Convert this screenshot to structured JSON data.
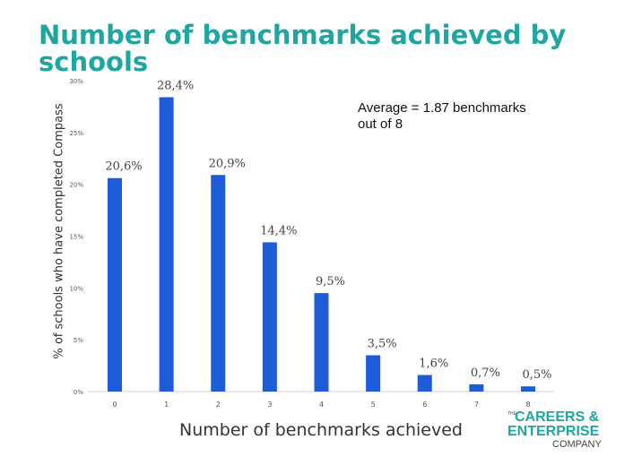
{
  "chart_data": {
    "type": "bar",
    "title": "Number of benchmarks achieved by schools",
    "xlabel": "Number of benchmarks achieved",
    "ylabel": "% of schools who have completed Compass",
    "categories": [
      "0",
      "1",
      "2",
      "3",
      "4",
      "5",
      "6",
      "7",
      "8"
    ],
    "values": [
      20.6,
      28.4,
      20.9,
      14.4,
      9.5,
      3.5,
      1.6,
      0.7,
      0.5
    ],
    "data_labels": [
      "20,6%",
      "28,4%",
      "20,9%",
      "14,4%",
      "9,5%",
      "3,5%",
      "1,6%",
      "0,7%",
      "0,5%"
    ],
    "yticks": [
      0,
      5,
      10,
      15,
      20,
      25,
      30
    ],
    "ytick_labels": [
      "0%",
      "5%",
      "10%",
      "15%",
      "20%",
      "25%",
      "30%"
    ],
    "ylim": [
      0,
      30
    ],
    "grid": false,
    "legend": "none",
    "bar_color": "#1e5bd6",
    "annotation": "Average = 1.87 benchmarks out of 8"
  },
  "title_color": "#1fa6a0",
  "logo": {
    "the": "THE",
    "line1": "CAREERS &",
    "line2": "ENTERPRISE",
    "line3": "COMPANY",
    "color": "#1fa6a0"
  }
}
